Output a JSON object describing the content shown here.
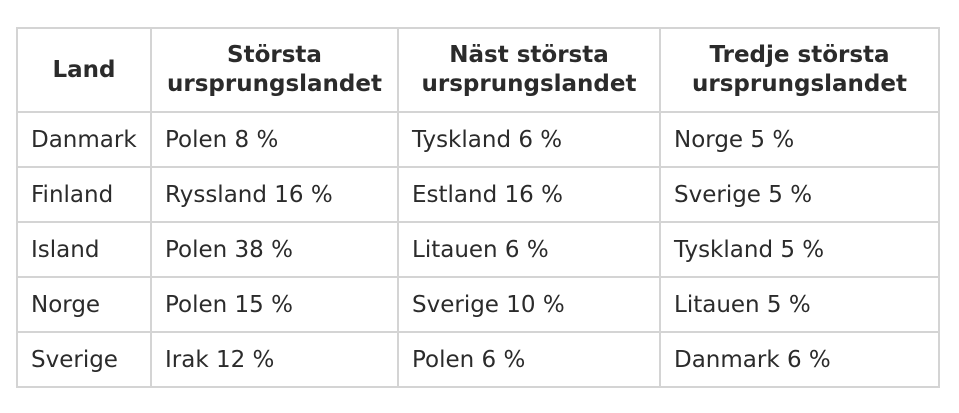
{
  "table": {
    "headers": [
      {
        "line1": "Land",
        "line2": ""
      },
      {
        "line1": "Största",
        "line2": "ursprungslandet"
      },
      {
        "line1": "Näst största",
        "line2": "ursprungslandet"
      },
      {
        "line1": "Tredje största",
        "line2": "ursprungslandet"
      }
    ],
    "rows": [
      [
        "Danmark",
        "Polen 8 %",
        "Tyskland 6 %",
        "Norge 5 %"
      ],
      [
        "Finland",
        "Ryssland 16 %",
        "Estland 16 %",
        "Sverige 5 %"
      ],
      [
        "Island",
        "Polen 38 %",
        "Litauen 6 %",
        "Tyskland 5 %"
      ],
      [
        "Norge",
        "Polen 15 %",
        "Sverige 10 %",
        "Litauen 5 %"
      ],
      [
        "Sverige",
        "Irak 12 %",
        "Polen 6 %",
        "Danmark 6 %"
      ]
    ]
  }
}
